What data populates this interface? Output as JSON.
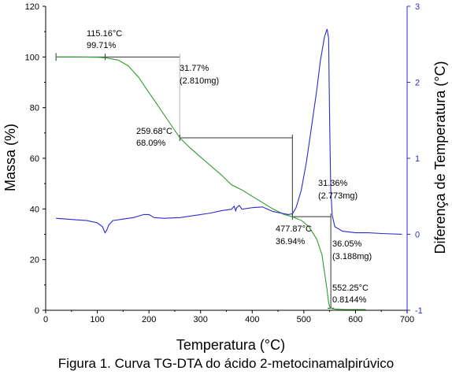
{
  "chart_data": {
    "type": "line",
    "xlabel": "Temperatura (°C)",
    "ylabel": "Massa (%)",
    "y2label": "Diferença de Temperatura (°C)",
    "xlim": [
      0,
      700
    ],
    "ylim": [
      0,
      120
    ],
    "y2lim": [
      -1,
      3
    ],
    "xticks": [
      "0",
      "100",
      "200",
      "300",
      "400",
      "500",
      "600",
      "700"
    ],
    "yticks": [
      "0",
      "20",
      "40",
      "60",
      "80",
      "100",
      "120"
    ],
    "y2ticks": [
      "-1",
      "0",
      "1",
      "2",
      "3"
    ],
    "grid": false,
    "colors": {
      "tg": "#2e9e2e",
      "dta": "#2b2bd0",
      "axis": "#000000",
      "y2axis": "#2b2bd0",
      "guide": "#b8b8b8"
    },
    "series": [
      {
        "axis": "left",
        "color": "#2e9e2e",
        "x": [
          20,
          60,
          100,
          115,
          140,
          160,
          180,
          200,
          220,
          240,
          259.7,
          280,
          300,
          320,
          340,
          360,
          380,
          400,
          420,
          440,
          460,
          477.9,
          495,
          510,
          525,
          535,
          540,
          545,
          548,
          550,
          552.3,
          560,
          580,
          600,
          620
        ],
        "y": [
          100,
          100,
          99.9,
          99.7,
          98.8,
          96.5,
          92,
          86,
          80,
          74,
          68.1,
          64,
          60.5,
          57,
          53.5,
          49.5,
          47.5,
          45,
          42.5,
          40,
          38,
          36.9,
          35.5,
          33,
          28,
          22,
          15,
          8,
          3,
          1.5,
          0.8,
          0.5,
          0.3,
          0.3,
          0.3
        ]
      },
      {
        "axis": "right",
        "color": "#2b2bd0",
        "x": [
          20,
          40,
          60,
          80,
          100,
          110,
          115,
          118,
          122,
          130,
          150,
          170,
          190,
          200,
          210,
          230,
          260,
          290,
          320,
          340,
          360,
          365,
          368,
          370,
          375,
          380,
          400,
          420,
          430,
          440,
          455,
          470,
          478,
          485,
          495,
          505,
          515,
          525,
          532,
          540,
          545,
          548,
          550,
          552,
          555,
          560,
          575,
          600,
          625,
          650,
          690
        ],
        "y": [
          0.21,
          0.2,
          0.19,
          0.18,
          0.15,
          0.1,
          0.02,
          0.05,
          0.12,
          0.18,
          0.2,
          0.22,
          0.26,
          0.26,
          0.22,
          0.21,
          0.22,
          0.25,
          0.28,
          0.31,
          0.33,
          0.37,
          0.31,
          0.35,
          0.38,
          0.33,
          0.35,
          0.36,
          0.33,
          0.3,
          0.28,
          0.26,
          0.27,
          0.35,
          0.58,
          0.95,
          1.42,
          1.9,
          2.28,
          2.6,
          2.7,
          2.58,
          1.5,
          0.6,
          0.25,
          0.1,
          0.04,
          0.02,
          0.02,
          0.01,
          0.0
        ]
      }
    ],
    "annotations": {
      "a1_temp": "115.16°C",
      "a1_mass": "99.71%",
      "a2_loss": "31.77%",
      "a2_mg": "(2.810mg)",
      "a3_temp": "259.68°C",
      "a3_mass": "68.09%",
      "a4_loss": "31.36%",
      "a4_mg": "(2.773mg)",
      "a5_temp": "477.87°C",
      "a5_mass": "36.94%",
      "a6_loss": "36.05%",
      "a6_mg": "(3.188mg)",
      "a7_temp": "552.25°C",
      "a7_mass": "0.8144%"
    },
    "guides": {
      "step1": {
        "x1": 20,
        "x2": 259.68,
        "y_start": 100,
        "y_end": 68.09
      },
      "step2": {
        "x1": 259.68,
        "x2": 477.87,
        "y_start": 68.09,
        "y_end": 36.94
      },
      "step3": {
        "x1": 477.87,
        "x2": 552.25,
        "y_start": 36.94,
        "y_end": 0.8144
      }
    }
  },
  "caption": "Figura 1. Curva TG-DTA do ácido 2-metocinamalpirúvico"
}
